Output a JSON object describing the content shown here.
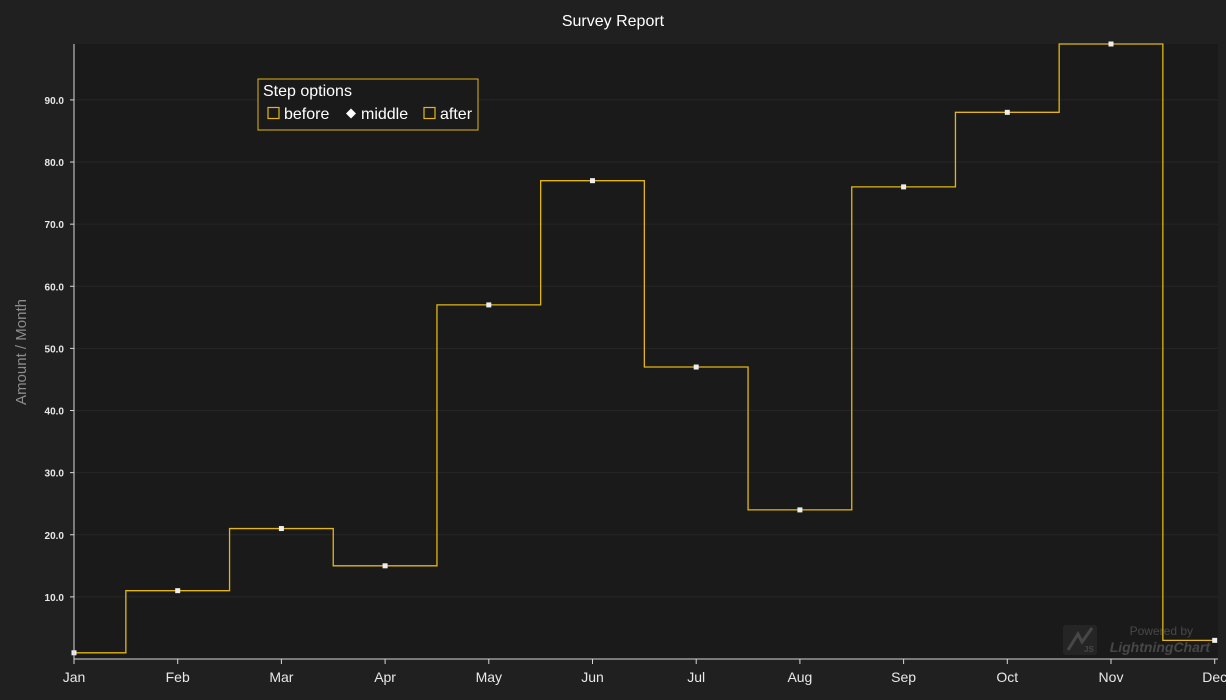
{
  "chart_data": {
    "type": "line",
    "title": "Survey Report",
    "xlabel": "",
    "ylabel": "Amount / Month",
    "categories": [
      "Jan",
      "Feb",
      "Mar",
      "Apr",
      "May",
      "Jun",
      "Jul",
      "Aug",
      "Sep",
      "Oct",
      "Nov",
      "Dec"
    ],
    "series": [
      {
        "values": [
          1,
          11,
          21,
          15,
          57,
          77,
          47,
          24,
          76,
          88,
          99,
          3
        ],
        "step_mode": "middle",
        "line_color": "#e2b714",
        "point_color": "#eeeeee"
      }
    ],
    "ylim": [
      0,
      99
    ],
    "yticks": [
      "10.0",
      "20.0",
      "30.0",
      "40.0",
      "50.0",
      "60.0",
      "70.0",
      "80.0",
      "90.0"
    ],
    "grid": true,
    "legend": {
      "title": "Step options",
      "placement": "top-left",
      "entries": [
        {
          "label": "before",
          "marker": "square"
        },
        {
          "label": "middle",
          "marker": "diamond"
        },
        {
          "label": "after",
          "marker": "square"
        }
      ]
    }
  },
  "branding": {
    "line1": "Powered by",
    "line2": "LightningChart",
    "badge": "JS"
  },
  "colors": {
    "page_background": "#202020",
    "plot_background": "#1a1a1a",
    "accent": "#e2b714",
    "axis": "#d8d8d8",
    "text": "#ffffff",
    "axis_title": "#8c8c8c"
  }
}
